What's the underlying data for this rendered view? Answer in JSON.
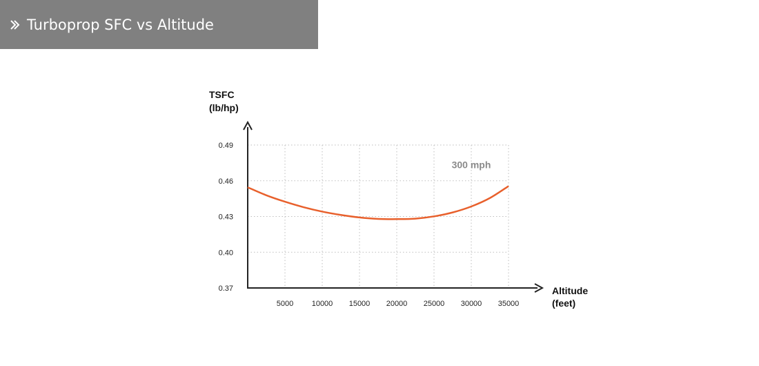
{
  "header": {
    "title": "Turboprop SFC vs Altitude",
    "icon": "double-chevron-right-icon",
    "background": "#808080"
  },
  "chart_data": {
    "type": "line",
    "title": "",
    "ylabel_line1": "TSFC",
    "ylabel_line2": "(lb/hp)",
    "xlabel_line1": "Altitude",
    "xlabel_line2": "(feet)",
    "xlim": [
      0,
      35000
    ],
    "ylim": [
      0.37,
      0.49
    ],
    "x_ticks": [
      5000,
      10000,
      15000,
      20000,
      25000,
      30000,
      35000
    ],
    "x_tick_labels": [
      "5000",
      "10000",
      "15000",
      "20000",
      "25000",
      "30000",
      "35000"
    ],
    "y_ticks": [
      0.37,
      0.4,
      0.43,
      0.46,
      0.49
    ],
    "y_tick_labels": [
      "0.37",
      "0.40",
      "0.43",
      "0.46",
      "0.49"
    ],
    "grid": true,
    "series": [
      {
        "color": "#e8602c",
        "x": [
          0,
          2500,
          5000,
          7500,
          10000,
          12500,
          15000,
          17500,
          20000,
          22500,
          25000,
          27500,
          30000,
          32500,
          35000
        ],
        "y": [
          0.4545,
          0.4478,
          0.4424,
          0.4378,
          0.4341,
          0.4313,
          0.4292,
          0.428,
          0.4278,
          0.4282,
          0.4301,
          0.4334,
          0.4384,
          0.4455,
          0.4555
        ]
      }
    ],
    "annotations": [
      {
        "text": "300 mph",
        "x": 30000,
        "y": 0.4705
      }
    ],
    "annotation_color": "#8a8a8a"
  }
}
